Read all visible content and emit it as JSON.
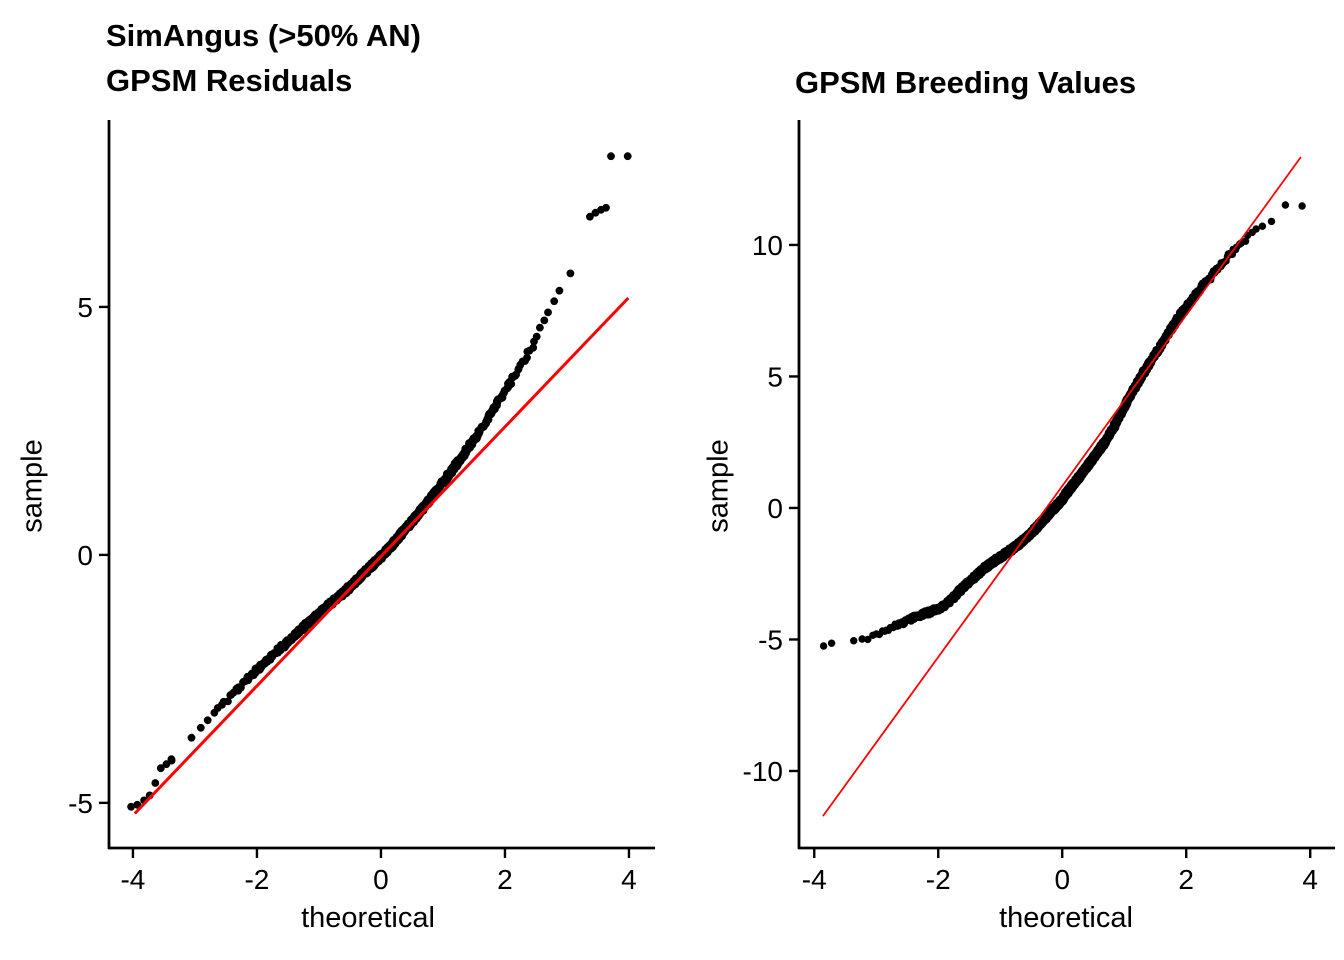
{
  "figure": {
    "background": "#FFFFFF",
    "point_color": "#000000",
    "axis_color": "#000000",
    "ref_line_color": "#FF0000"
  },
  "chart_data": [
    {
      "type": "scatter",
      "variant": "qq-plot",
      "title_lines": [
        "SimAngus (>50% AN)",
        "GPSM Residuals"
      ],
      "xlabel": "theoretical",
      "ylabel": "sample",
      "x_ticks": [
        -4,
        -2,
        0,
        2,
        4
      ],
      "y_ticks": [
        -5,
        0,
        5
      ],
      "xlim": [
        -4.37,
        4.42
      ],
      "ylim": [
        -5.89,
        8.77
      ],
      "grid": false,
      "legend": false,
      "n_points": 1300,
      "ref_line": {
        "slope": 1.306,
        "intercept": -0.03,
        "x_start": -3.97,
        "x_end": 3.99
      },
      "curve_anchors": [
        [
          -3.73,
          -4.85
        ],
        [
          -3.6,
          -4.5
        ],
        [
          -3.45,
          -4.22
        ],
        [
          -3.3,
          -4.05
        ],
        [
          -3.15,
          -3.85
        ],
        [
          -3.0,
          -3.62
        ],
        [
          -2.85,
          -3.42
        ],
        [
          -2.7,
          -3.22
        ],
        [
          -2.55,
          -3.0
        ],
        [
          -2.4,
          -2.82
        ],
        [
          -2.25,
          -2.62
        ],
        [
          -2.1,
          -2.45
        ],
        [
          -1.95,
          -2.25
        ],
        [
          -1.8,
          -2.08
        ],
        [
          -1.65,
          -1.92
        ],
        [
          -1.5,
          -1.75
        ],
        [
          -1.35,
          -1.58
        ],
        [
          -1.2,
          -1.4
        ],
        [
          -1.05,
          -1.24
        ],
        [
          -0.9,
          -1.08
        ],
        [
          -0.75,
          -0.92
        ],
        [
          -0.6,
          -0.76
        ],
        [
          -0.45,
          -0.58
        ],
        [
          -0.3,
          -0.4
        ],
        [
          -0.15,
          -0.22
        ],
        [
          0.0,
          -0.04
        ],
        [
          0.15,
          0.16
        ],
        [
          0.3,
          0.38
        ],
        [
          0.45,
          0.6
        ],
        [
          0.6,
          0.82
        ],
        [
          0.75,
          1.06
        ],
        [
          0.9,
          1.3
        ],
        [
          1.05,
          1.54
        ],
        [
          1.2,
          1.8
        ],
        [
          1.35,
          2.06
        ],
        [
          1.5,
          2.32
        ],
        [
          1.65,
          2.6
        ],
        [
          1.8,
          2.9
        ],
        [
          1.95,
          3.2
        ],
        [
          2.1,
          3.5
        ],
        [
          2.25,
          3.8
        ],
        [
          2.4,
          4.12
        ],
        [
          2.55,
          4.5
        ],
        [
          2.7,
          4.9
        ],
        [
          2.85,
          5.28
        ],
        [
          3.0,
          5.62
        ],
        [
          3.1,
          5.82
        ],
        [
          3.2,
          6.05
        ],
        [
          3.3,
          6.3
        ]
      ],
      "extra_points": [
        [
          -4.03,
          -5.08
        ],
        [
          -3.93,
          -5.04
        ],
        [
          -3.82,
          -4.95
        ],
        [
          -3.73,
          -4.85
        ],
        [
          -3.64,
          -4.6
        ],
        [
          -3.55,
          -4.3
        ],
        [
          -3.46,
          -4.22
        ],
        [
          -3.38,
          -4.12
        ],
        [
          3.37,
          6.82
        ],
        [
          3.46,
          6.9
        ],
        [
          3.55,
          6.96
        ],
        [
          3.63,
          7.0
        ],
        [
          3.71,
          8.04
        ],
        [
          3.98,
          8.04
        ]
      ]
    },
    {
      "type": "scatter",
      "variant": "qq-plot",
      "title_lines": [
        "GPSM Breeding Values"
      ],
      "xlabel": "theoretical",
      "ylabel": "sample",
      "x_ticks": [
        -4,
        -2,
        0,
        2,
        4
      ],
      "y_ticks": [
        -10,
        -5,
        0,
        5,
        10
      ],
      "xlim": [
        -4.23,
        4.4
      ],
      "ylim": [
        -12.89,
        14.75
      ],
      "grid": false,
      "legend": false,
      "n_points": 4000,
      "ref_line": {
        "slope": 3.25,
        "intercept": 0.83,
        "x_start": -3.86,
        "x_end": 3.85
      },
      "curve_anchors": [
        [
          -3.61,
          -5.1
        ],
        [
          -3.45,
          -5.02
        ],
        [
          -3.3,
          -4.98
        ],
        [
          -3.15,
          -4.93
        ],
        [
          -3.0,
          -4.78
        ],
        [
          -2.85,
          -4.62
        ],
        [
          -2.7,
          -4.46
        ],
        [
          -2.55,
          -4.32
        ],
        [
          -2.4,
          -4.18
        ],
        [
          -2.25,
          -4.05
        ],
        [
          -2.1,
          -3.92
        ],
        [
          -1.95,
          -3.78
        ],
        [
          -1.82,
          -3.55
        ],
        [
          -1.68,
          -3.2
        ],
        [
          -1.55,
          -2.92
        ],
        [
          -1.4,
          -2.6
        ],
        [
          -1.25,
          -2.28
        ],
        [
          -1.1,
          -2.02
        ],
        [
          -0.95,
          -1.8
        ],
        [
          -0.8,
          -1.55
        ],
        [
          -0.65,
          -1.28
        ],
        [
          -0.5,
          -0.95
        ],
        [
          -0.35,
          -0.58
        ],
        [
          -0.2,
          -0.18
        ],
        [
          -0.05,
          0.18
        ],
        [
          0.1,
          0.65
        ],
        [
          0.25,
          1.1
        ],
        [
          0.4,
          1.58
        ],
        [
          0.55,
          2.05
        ],
        [
          0.7,
          2.55
        ],
        [
          0.85,
          3.15
        ],
        [
          1.0,
          3.85
        ],
        [
          1.15,
          4.5
        ],
        [
          1.3,
          5.1
        ],
        [
          1.45,
          5.65
        ],
        [
          1.6,
          6.2
        ],
        [
          1.75,
          6.78
        ],
        [
          1.9,
          7.32
        ],
        [
          2.05,
          7.8
        ],
        [
          2.2,
          8.25
        ],
        [
          2.35,
          8.68
        ],
        [
          2.5,
          9.1
        ],
        [
          2.65,
          9.5
        ],
        [
          2.8,
          9.88
        ],
        [
          2.95,
          10.22
        ],
        [
          3.1,
          10.5
        ],
        [
          3.25,
          10.7
        ],
        [
          3.4,
          10.83
        ],
        [
          3.58,
          10.95
        ]
      ],
      "extra_points": [
        [
          -3.85,
          -5.25
        ],
        [
          -3.72,
          -5.14
        ],
        [
          3.6,
          11.52
        ],
        [
          3.87,
          11.48
        ]
      ]
    }
  ]
}
